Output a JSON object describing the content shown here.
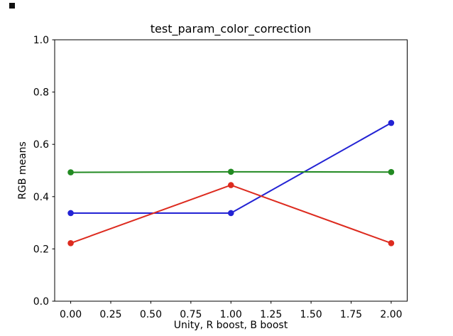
{
  "decorations": {
    "corner_mark_color": "#111111"
  },
  "colors": {
    "background": "#ffffff",
    "axis": "#000000",
    "text": "#000000"
  },
  "chart_data": {
    "type": "line",
    "title": "test_param_color_correction",
    "xlabel": "Unity, R boost, B boost",
    "ylabel": "RGB means",
    "x": [
      0,
      1,
      2
    ],
    "series": [
      {
        "name": "blue",
        "color": "#2323d4",
        "values": [
          0.337,
          0.337,
          0.682
        ]
      },
      {
        "name": "red",
        "color": "#dd2b1f",
        "values": [
          0.222,
          0.444,
          0.222
        ]
      },
      {
        "name": "green",
        "color": "#228a22",
        "values": [
          0.493,
          0.495,
          0.494
        ]
      }
    ],
    "xlim": [
      -0.1,
      2.1
    ],
    "ylim": [
      0.0,
      1.0
    ],
    "x_tick_values": [
      0.0,
      0.25,
      0.5,
      0.75,
      1.0,
      1.25,
      1.5,
      1.75,
      2.0
    ],
    "x_tick_labels": [
      "0.00",
      "0.25",
      "0.50",
      "0.75",
      "1.00",
      "1.25",
      "1.50",
      "1.75",
      "2.00"
    ],
    "y_tick_values": [
      0.0,
      0.2,
      0.4,
      0.6,
      0.8,
      1.0
    ],
    "y_tick_labels": [
      "0.0",
      "0.2",
      "0.4",
      "0.6",
      "0.8",
      "1.0"
    ],
    "grid": false,
    "legend": "none",
    "marker": "circle",
    "marker_radius": 4.3,
    "line_width": 2
  }
}
